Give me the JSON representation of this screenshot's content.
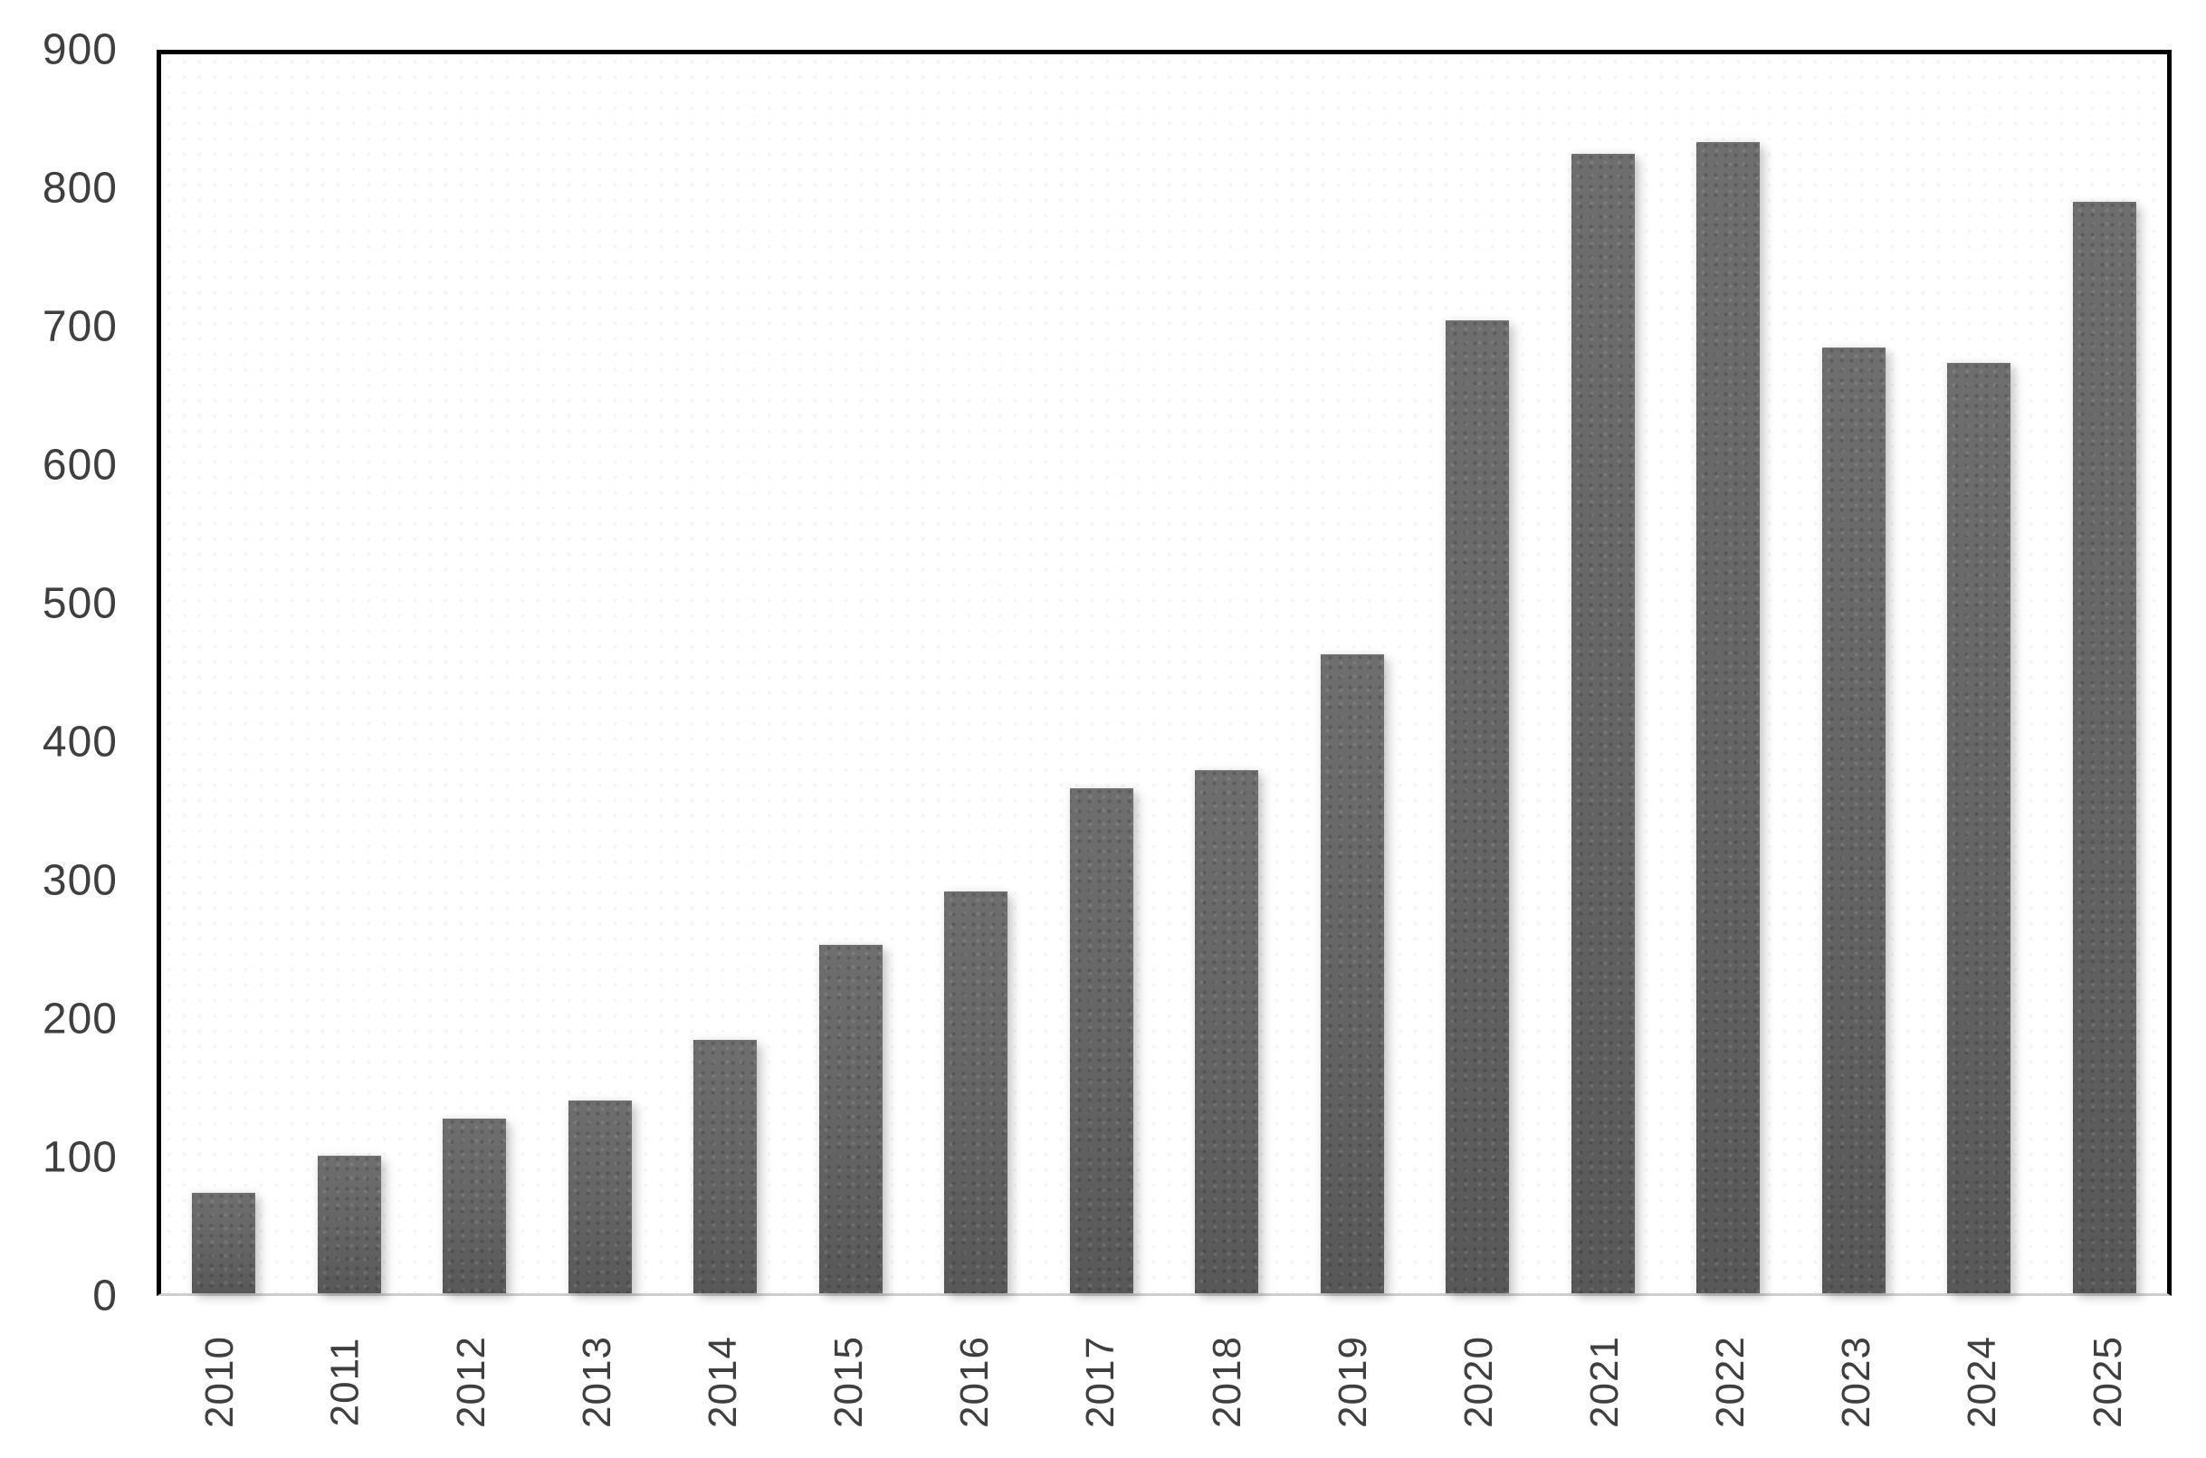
{
  "chart_data": {
    "type": "bar",
    "title": "",
    "xlabel": "",
    "ylabel": "",
    "categories": [
      "2010",
      "2011",
      "2012",
      "2013",
      "2014",
      "2015",
      "2016",
      "2017",
      "2018",
      "2019",
      "2020",
      "2021",
      "2022",
      "2023",
      "2024",
      "2025"
    ],
    "values": [
      73,
      100,
      127,
      140,
      184,
      253,
      292,
      367,
      380,
      464,
      707,
      828,
      836,
      687,
      676,
      793
    ],
    "ylim": [
      0,
      900
    ],
    "yticks": [
      0,
      100,
      200,
      300,
      400,
      500,
      600,
      700,
      800,
      900
    ],
    "grid": false,
    "legend": false,
    "layout": {
      "x_tick_rotation_degrees": -90,
      "plot_border_sides": "top-left-right-black, bottom-light-gray"
    },
    "colors": {
      "bar_fill": "#636363",
      "bar_fill_light": "#6e6e6e",
      "bar_fill_dark": "#585858",
      "plot_border": "#000000",
      "baseline": "#cfcfcf",
      "tick_label": "#3f3f3f",
      "background": "#ffffff"
    }
  }
}
